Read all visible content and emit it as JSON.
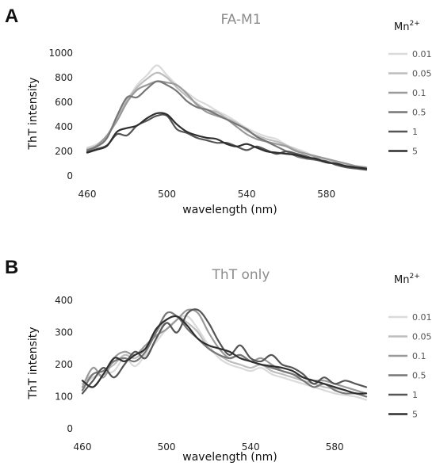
{
  "panels": [
    {
      "letter": "A"
    },
    {
      "letter": "B"
    }
  ],
  "legend": {
    "title": "Mn",
    "title_superscript": "2+"
  },
  "chart_data": [
    {
      "type": "line",
      "title": "FA-M1",
      "xlabel": "wavelength (nm)",
      "ylabel": "ThT intensity",
      "xlim": [
        460,
        600
      ],
      "ylim": [
        0,
        1000
      ],
      "x_ticks": [
        460,
        500,
        540,
        580
      ],
      "y_ticks": [
        0,
        200,
        400,
        600,
        800,
        1000
      ],
      "grid": false,
      "legend_position": "right",
      "series": [
        {
          "name": "0.01",
          "color": "#dadada",
          "x": [
            460,
            465,
            470,
            475,
            480,
            485,
            490,
            495,
            500,
            505,
            510,
            515,
            520,
            525,
            530,
            535,
            540,
            545,
            550,
            555,
            560,
            565,
            570,
            575,
            580,
            585,
            590,
            595,
            600
          ],
          "y": [
            230,
            260,
            330,
            470,
            610,
            740,
            820,
            900,
            820,
            740,
            680,
            620,
            580,
            530,
            490,
            440,
            390,
            350,
            320,
            300,
            250,
            220,
            190,
            150,
            130,
            115,
            95,
            80,
            70
          ]
        },
        {
          "name": "0.05",
          "color": "#bdbdbd",
          "x": [
            460,
            465,
            470,
            475,
            480,
            485,
            490,
            495,
            500,
            505,
            510,
            515,
            520,
            525,
            530,
            535,
            540,
            545,
            550,
            555,
            560,
            565,
            570,
            575,
            580,
            585,
            590,
            595,
            600
          ],
          "y": [
            220,
            250,
            330,
            470,
            620,
            720,
            790,
            840,
            800,
            720,
            650,
            590,
            540,
            520,
            470,
            430,
            370,
            330,
            300,
            280,
            250,
            210,
            180,
            150,
            140,
            110,
            100,
            80,
            70
          ]
        },
        {
          "name": "0.1",
          "color": "#9a9a9a",
          "x": [
            460,
            465,
            470,
            475,
            480,
            485,
            490,
            495,
            500,
            505,
            510,
            515,
            520,
            525,
            530,
            535,
            540,
            545,
            550,
            555,
            560,
            565,
            570,
            575,
            580,
            585,
            590,
            595,
            600
          ],
          "y": [
            200,
            250,
            330,
            450,
            600,
            700,
            740,
            770,
            760,
            740,
            670,
            580,
            520,
            490,
            460,
            400,
            340,
            300,
            280,
            260,
            240,
            200,
            180,
            160,
            140,
            120,
            100,
            80,
            70
          ]
        },
        {
          "name": "0.5",
          "color": "#777777",
          "x": [
            460,
            465,
            470,
            475,
            480,
            485,
            490,
            495,
            500,
            505,
            510,
            515,
            520,
            525,
            530,
            535,
            540,
            545,
            550,
            555,
            560,
            565,
            570,
            575,
            580,
            585,
            590,
            595,
            600
          ],
          "y": [
            210,
            240,
            310,
            490,
            640,
            640,
            710,
            770,
            740,
            690,
            610,
            560,
            540,
            500,
            460,
            420,
            380,
            320,
            280,
            240,
            200,
            160,
            140,
            130,
            110,
            100,
            80,
            70,
            60
          ]
        },
        {
          "name": "1",
          "color": "#555555",
          "x": [
            460,
            465,
            470,
            475,
            480,
            485,
            490,
            495,
            500,
            505,
            510,
            515,
            520,
            525,
            530,
            535,
            540,
            545,
            550,
            555,
            560,
            565,
            570,
            575,
            580,
            585,
            590,
            595,
            600
          ],
          "y": [
            195,
            220,
            250,
            340,
            330,
            410,
            450,
            490,
            490,
            380,
            350,
            310,
            290,
            270,
            270,
            240,
            210,
            240,
            210,
            180,
            200,
            180,
            160,
            130,
            120,
            90,
            70,
            60,
            50
          ]
        },
        {
          "name": "5",
          "color": "#2e2e2e",
          "x": [
            460,
            465,
            470,
            475,
            480,
            485,
            490,
            495,
            500,
            505,
            510,
            515,
            520,
            525,
            530,
            535,
            540,
            545,
            550,
            555,
            560,
            565,
            570,
            575,
            580,
            585,
            590,
            595,
            600
          ],
          "y": [
            190,
            215,
            245,
            360,
            390,
            410,
            470,
            510,
            500,
            420,
            360,
            330,
            310,
            300,
            260,
            240,
            260,
            230,
            200,
            190,
            180,
            170,
            150,
            140,
            110,
            100,
            80,
            70,
            60
          ]
        }
      ]
    },
    {
      "type": "line",
      "title": "ThT only",
      "xlabel": "wavelength (nm)",
      "ylabel": "ThT intensity",
      "xlim": [
        460,
        595
      ],
      "ylim": [
        0,
        400
      ],
      "x_ticks": [
        460,
        500,
        540,
        580
      ],
      "y_ticks": [
        0,
        100,
        200,
        300,
        400
      ],
      "grid": false,
      "legend_position": "right",
      "series": [
        {
          "name": "0.01",
          "color": "#dadada",
          "x": [
            460,
            465,
            470,
            475,
            480,
            485,
            490,
            495,
            500,
            505,
            510,
            515,
            520,
            525,
            530,
            535,
            540,
            545,
            550,
            555,
            560,
            565,
            570,
            575,
            580,
            585,
            590,
            595
          ],
          "y": [
            130,
            160,
            170,
            180,
            220,
            195,
            230,
            270,
            310,
            340,
            350,
            310,
            260,
            220,
            200,
            190,
            180,
            190,
            170,
            160,
            150,
            140,
            130,
            120,
            110,
            105,
            100,
            90
          ]
        },
        {
          "name": "0.05",
          "color": "#bdbdbd",
          "x": [
            460,
            465,
            470,
            475,
            480,
            485,
            490,
            495,
            500,
            505,
            510,
            515,
            520,
            525,
            530,
            535,
            540,
            545,
            550,
            555,
            560,
            565,
            570,
            575,
            580,
            585,
            590,
            595
          ],
          "y": [
            140,
            170,
            180,
            200,
            230,
            220,
            250,
            300,
            340,
            350,
            330,
            300,
            250,
            230,
            210,
            200,
            190,
            200,
            180,
            170,
            160,
            150,
            140,
            130,
            125,
            120,
            110,
            100
          ]
        },
        {
          "name": "0.1",
          "color": "#9a9a9a",
          "x": [
            460,
            465,
            470,
            475,
            480,
            485,
            490,
            495,
            500,
            505,
            510,
            515,
            520,
            525,
            530,
            535,
            540,
            545,
            550,
            555,
            560,
            565,
            570,
            575,
            580,
            585,
            590,
            595
          ],
          "y": [
            130,
            190,
            160,
            220,
            240,
            230,
            260,
            290,
            310,
            340,
            370,
            360,
            300,
            250,
            220,
            230,
            210,
            220,
            200,
            180,
            170,
            160,
            150,
            150,
            140,
            130,
            120,
            110
          ]
        },
        {
          "name": "0.5",
          "color": "#777777",
          "x": [
            460,
            465,
            470,
            475,
            480,
            485,
            490,
            495,
            500,
            505,
            510,
            515,
            520,
            525,
            530,
            535,
            540,
            545,
            550,
            555,
            560,
            565,
            570,
            575,
            580,
            585,
            590,
            595
          ],
          "y": [
            120,
            170,
            180,
            210,
            220,
            210,
            240,
            300,
            360,
            350,
            310,
            280,
            250,
            230,
            220,
            230,
            210,
            200,
            190,
            180,
            170,
            150,
            130,
            140,
            120,
            110,
            110,
            100
          ]
        },
        {
          "name": "1",
          "color": "#555555",
          "x": [
            460,
            465,
            470,
            475,
            480,
            485,
            490,
            495,
            500,
            505,
            510,
            515,
            520,
            525,
            530,
            535,
            540,
            545,
            550,
            555,
            560,
            565,
            570,
            575,
            580,
            585,
            590,
            595
          ],
          "y": [
            110,
            150,
            190,
            160,
            200,
            240,
            220,
            280,
            330,
            300,
            360,
            370,
            330,
            270,
            230,
            260,
            220,
            210,
            230,
            200,
            190,
            170,
            140,
            160,
            140,
            150,
            140,
            130
          ]
        },
        {
          "name": "5",
          "color": "#2e2e2e",
          "x": [
            460,
            465,
            470,
            475,
            480,
            485,
            490,
            495,
            500,
            505,
            510,
            515,
            520,
            525,
            530,
            535,
            540,
            545,
            550,
            555,
            560,
            565,
            570,
            575,
            580,
            585,
            590,
            595
          ],
          "y": [
            150,
            130,
            170,
            220,
            210,
            230,
            250,
            310,
            340,
            350,
            320,
            280,
            260,
            250,
            240,
            220,
            210,
            200,
            195,
            190,
            180,
            160,
            150,
            140,
            130,
            120,
            110,
            110
          ]
        }
      ]
    }
  ]
}
